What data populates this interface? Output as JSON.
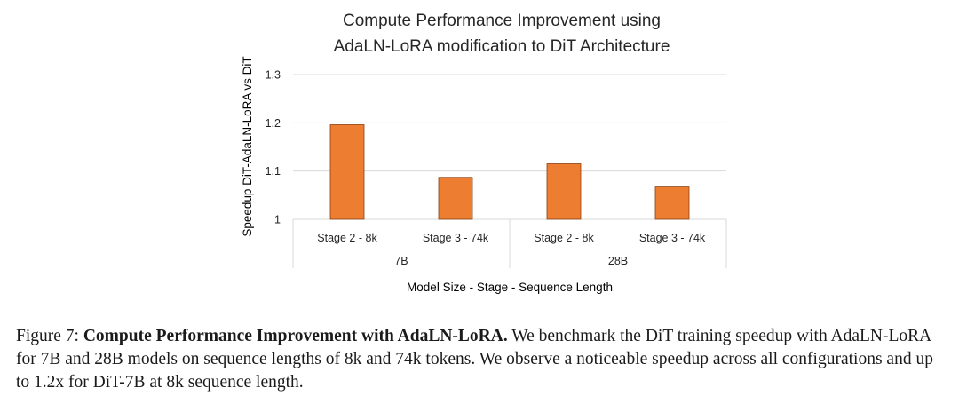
{
  "chart_data": {
    "type": "bar",
    "title_lines": [
      "Compute Performance Improvement using",
      "AdaLN-LoRA modification to DiT Architecture"
    ],
    "ylabel": "Speedup DiT-AdaLN-LoRA vs DiT",
    "xlabel": "Model Size - Stage - Sequence Length",
    "ylim": [
      1,
      1.3
    ],
    "yticks": [
      "1",
      "1.1",
      "1.2",
      "1.3"
    ],
    "ytick_values": [
      1,
      1.1,
      1.2,
      1.3
    ],
    "grid": true,
    "bar_color": "#ED7D31",
    "categories": [
      "Stage 2 - 8k",
      "Stage 3 - 74k",
      "Stage 2 - 8k",
      "Stage 3 - 74k"
    ],
    "groups": [
      {
        "label": "7B",
        "count": 2
      },
      {
        "label": "28B",
        "count": 2
      }
    ],
    "values": [
      1.196,
      1.087,
      1.115,
      1.067
    ]
  },
  "caption": {
    "prefix": "Figure 7: ",
    "bold": "Compute Performance Improvement with AdaLN-LoRA.",
    "text": " We benchmark the DiT training speedup with AdaLN-LoRA for 7B and 28B models on sequence lengths of 8k and 74k tokens. We observe a noticeable speedup across all configurations and up to 1.2x for DiT-7B at 8k sequence length."
  }
}
